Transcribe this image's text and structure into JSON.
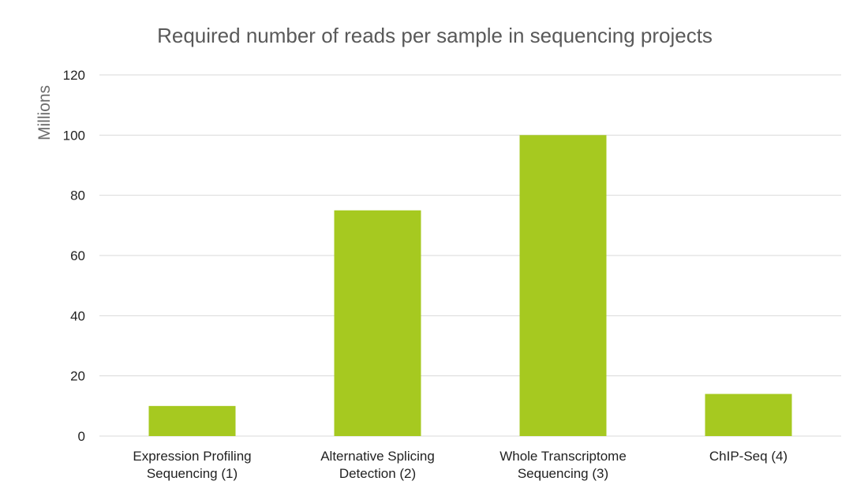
{
  "chart_data": {
    "type": "bar",
    "title": "Required number of reads per sample in sequencing projects",
    "xlabel": "",
    "ylabel": "Millions",
    "ylim": [
      0,
      120
    ],
    "yticks": [
      0,
      20,
      40,
      60,
      80,
      100,
      120
    ],
    "grid": true,
    "categories": [
      [
        "Expression Profiling",
        "Sequencing (1)"
      ],
      [
        "Alternative Splicing",
        "Detection (2)"
      ],
      [
        "Whole Transcriptome",
        "Sequencing (3)"
      ],
      [
        "ChIP-Seq (4)"
      ]
    ],
    "values": [
      10,
      75,
      100,
      14
    ],
    "bar_color": "#a6c920"
  }
}
